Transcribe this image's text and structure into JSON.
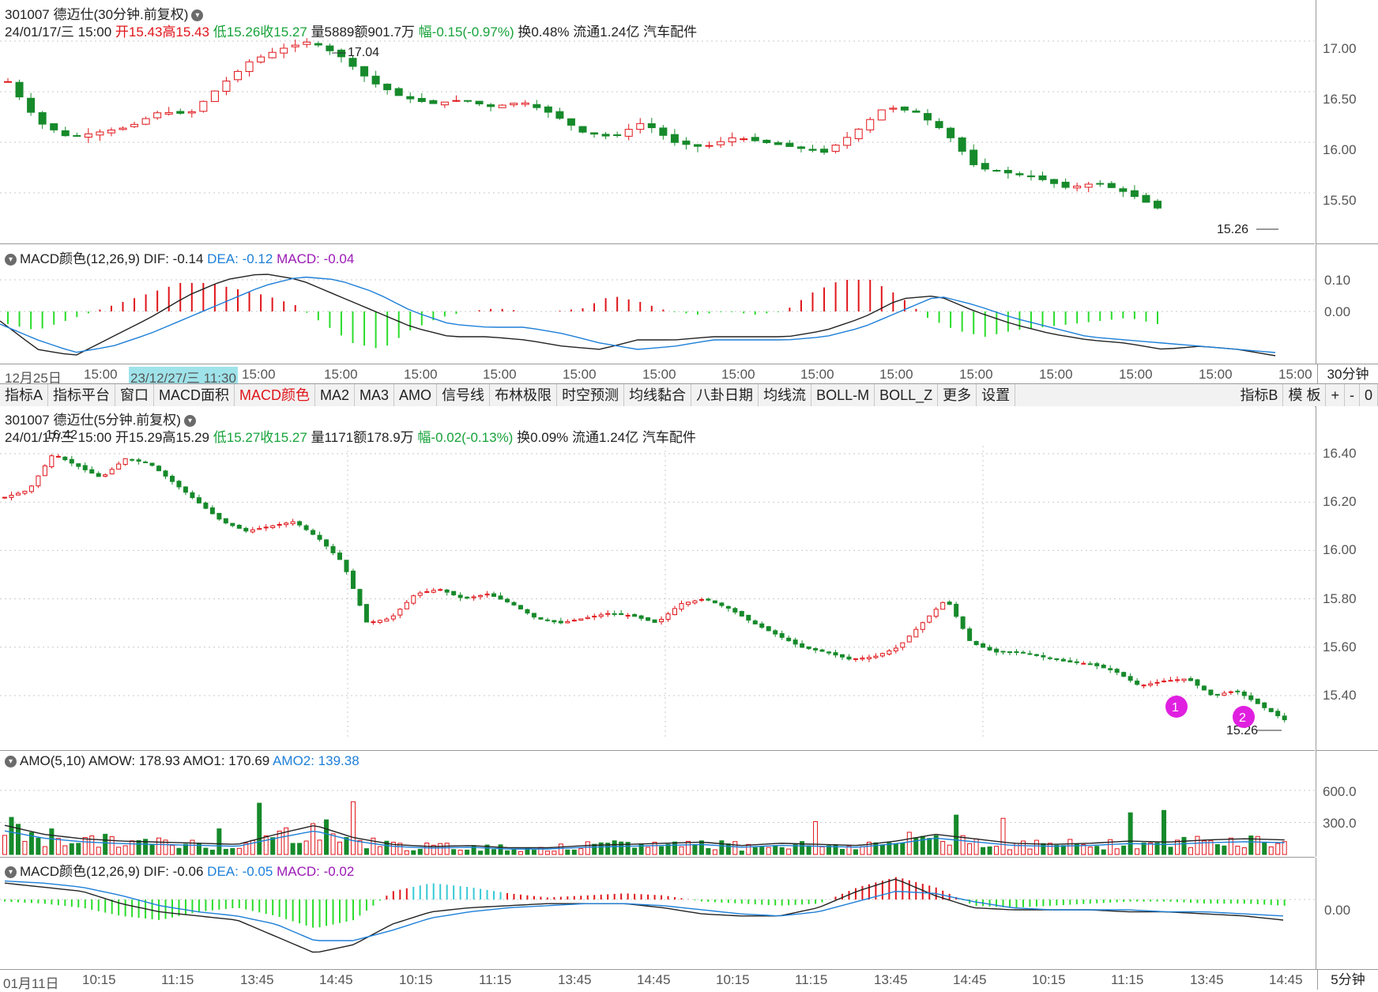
{
  "chart30": {
    "title": "301007 德迈仕(30分钟.前复权)",
    "date": "24/01/17/三 15:00",
    "open": "开15.43",
    "high": "高15.43",
    "low": "低15.26",
    "close": "收15.27",
    "vol": "量5889",
    "amount": "额901.7万",
    "change": "幅-0.15(-0.97%)",
    "turnover": "换0.48%",
    "float": "流通1.24亿",
    "industry": "汽车配件",
    "hi_mark": "17.04",
    "lo_mark": "15.26",
    "yticks": [
      "17.00",
      "16.50",
      "16.00",
      "15.50"
    ]
  },
  "macd30": {
    "name": "MACD颜色(12,26,9)",
    "dif": "DIF: -0.14",
    "dea": "DEA: -0.12",
    "macd": "MACD: -0.04",
    "yticks": [
      "0.10",
      "0.00"
    ]
  },
  "time30": {
    "labels": [
      "12月25日",
      "15:00",
      "23/12/27/三 11:30",
      "15:00",
      "15:00",
      "15:00",
      "15:00",
      "15:00",
      "15:00",
      "15:00",
      "15:00",
      "15:00",
      "15:00",
      "15:00",
      "15:00",
      "15:00",
      "15:00"
    ],
    "period": "30分钟"
  },
  "toolbar": {
    "items": [
      "指标A",
      "指标平台",
      "窗口",
      "MACD面积",
      "MACD颜色",
      "MA2",
      "MA3",
      "AMO",
      "信号线",
      "布林极限",
      "时空预测",
      "均线黏合",
      "八卦日期",
      "均线流",
      "BOLL-M",
      "BOLL_Z",
      "更多",
      "设置"
    ],
    "right": [
      "指标B",
      "模 板",
      "+",
      "-",
      "0"
    ]
  },
  "chart5": {
    "title": "301007 德迈仕(5分钟.前复权)",
    "date": "24/01/17/三 15:00",
    "open": "开15.29",
    "high": "高15.29",
    "low": "低15.27",
    "close": "收15.27",
    "vol": "量1171",
    "amount": "额178.9万",
    "change": "幅-0.02(-0.13%)",
    "turnover": "换0.09%",
    "float": "流通1.24亿",
    "industry": "汽车配件",
    "hi_mark": "16.42",
    "lo_mark": "15.26",
    "yticks": [
      "16.40",
      "16.20",
      "16.00",
      "15.80",
      "15.60",
      "15.40"
    ],
    "marker1": "1",
    "marker2": "2"
  },
  "amo": {
    "name": "AMO(5,10)",
    "amow": "AMOW: 178.93",
    "amo1": "AMO1: 170.69",
    "amo2": "AMO2: 139.38",
    "yticks": [
      "600.0",
      "300.0"
    ]
  },
  "macd5": {
    "name": "MACD颜色(12,26,9)",
    "dif": "DIF: -0.06",
    "dea": "DEA: -0.05",
    "macd": "MACD: -0.02",
    "yticks": [
      "0.00"
    ]
  },
  "time5": {
    "labels": [
      "01月11日",
      "10:15",
      "11:15",
      "13:45",
      "14:45",
      "10:15",
      "11:15",
      "13:45",
      "14:45",
      "10:15",
      "11:15",
      "13:45",
      "14:45",
      "10:15",
      "11:15",
      "13:45",
      "14:45"
    ],
    "period": "5分钟"
  },
  "colors": {
    "up": "#e0151a",
    "down": "#168a2b",
    "dif": "#222222",
    "dea": "#1d7fd8",
    "macd_pos": "#e0151a",
    "macd_neg": "#2bdc2b",
    "magenta": "#e020e0"
  }
}
